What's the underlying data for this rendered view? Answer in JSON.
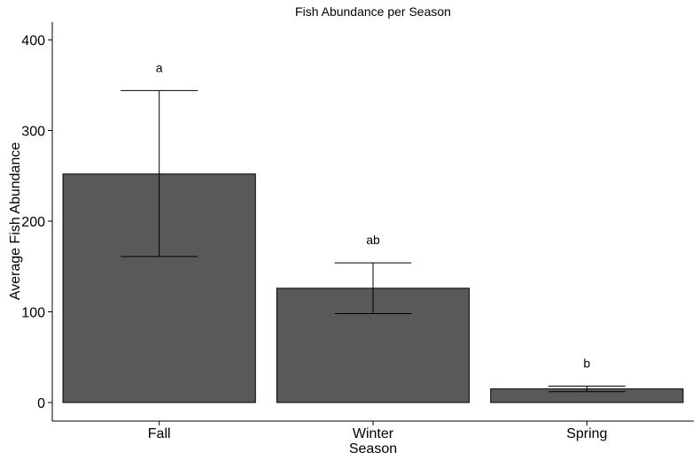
{
  "chart_data": {
    "type": "bar",
    "title": "Fish Abundance per Season",
    "xlabel": "Season",
    "ylabel": "Average Fish Abundance",
    "categories": [
      "Fall",
      "Winter",
      "Spring"
    ],
    "values": [
      252,
      126,
      15
    ],
    "error_upper": [
      344,
      154,
      18
    ],
    "error_lower": [
      161,
      98,
      12
    ],
    "significance_letters": [
      "a",
      "ab",
      "b"
    ],
    "ylim": [
      0,
      420
    ],
    "yticks": [
      0,
      100,
      200,
      300,
      400
    ],
    "ytick_labels": [
      "0",
      "100",
      "200",
      "300",
      "400"
    ],
    "grid": false,
    "bar_color": "#595959"
  }
}
